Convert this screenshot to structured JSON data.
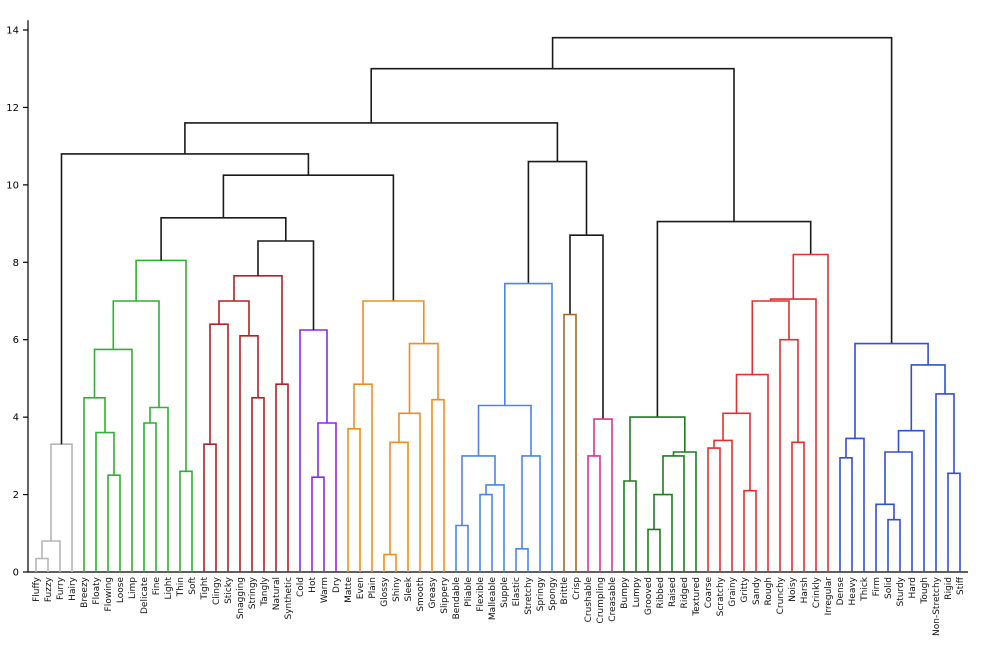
{
  "page": {
    "title": ""
  },
  "chart_data": {
    "type": "dendrogram",
    "title": "",
    "xlabel": "",
    "ylabel": "",
    "ylim": [
      0,
      14
    ],
    "yticks": [
      0,
      2,
      4,
      6,
      8,
      10,
      12,
      14
    ],
    "grid": false,
    "background": "#ffffff",
    "leaves": [
      "Fluffy",
      "Fuzzy",
      "Furry",
      "Hairy",
      "Breezy",
      "Floaty",
      "Flowing",
      "Loose",
      "Limp",
      "Delicate",
      "Fine",
      "Light",
      "Thin",
      "Soft",
      "Tight",
      "Clingy",
      "Sticky",
      "Snagging",
      "Stringy",
      "Tangly",
      "Natural",
      "Synthetic",
      "Cold",
      "Hot",
      "Warm",
      "Dry",
      "Matte",
      "Even",
      "Plain",
      "Glossy",
      "Shiny",
      "Sleek",
      "Smooth",
      "Greasy",
      "Slippery",
      "Bendable",
      "Pliable",
      "Flexible",
      "Malleable",
      "Supple",
      "Elastic",
      "Stretchy",
      "Springy",
      "Spongy",
      "Brittle",
      "Crisp",
      "Crushable",
      "Crumpling",
      "Creasable",
      "Bumpy",
      "Lumpy",
      "Grooved",
      "Ribbed",
      "Raised",
      "Ridged",
      "Textured",
      "Coarse",
      "Scratchy",
      "Grainy",
      "Gritty",
      "Sandy",
      "Rough",
      "Crunchy",
      "Noisy",
      "Harsh",
      "Crinkly",
      "Irregular",
      "Dense",
      "Heavy",
      "Thick",
      "Firm",
      "Solid",
      "Sturdy",
      "Hard",
      "Tough",
      "Non-Stretchy",
      "Rigid",
      "Stiff"
    ],
    "colors": {
      "black": "#1b1b1b",
      "gray": "#b5b5b5",
      "green": "#2db32d",
      "darkred": "#b22222",
      "purple": "#8a2be2",
      "orange": "#ef8d22",
      "lightblue": "#4a86e8",
      "brown": "#a5692a",
      "pink": "#e0338c",
      "darkgreen": "#1e7d1e",
      "red": "#e03131",
      "blue": "#3050d0"
    },
    "clusters": [
      {
        "color_key": "gray",
        "members": [
          "Fluffy",
          "Fuzzy",
          "Furry",
          "Hairy"
        ]
      },
      {
        "color_key": "green",
        "members": [
          "Breezy",
          "Floaty",
          "Flowing",
          "Loose",
          "Limp",
          "Delicate",
          "Fine",
          "Light",
          "Thin",
          "Soft"
        ]
      },
      {
        "color_key": "darkred",
        "members": [
          "Tight",
          "Clingy",
          "Sticky",
          "Snagging",
          "Stringy",
          "Tangly",
          "Natural",
          "Synthetic"
        ]
      },
      {
        "color_key": "purple",
        "members": [
          "Cold",
          "Hot",
          "Warm",
          "Dry"
        ]
      },
      {
        "color_key": "orange",
        "members": [
          "Matte",
          "Even",
          "Plain",
          "Glossy",
          "Shiny",
          "Sleek",
          "Smooth",
          "Greasy",
          "Slippery"
        ]
      },
      {
        "color_key": "lightblue",
        "members": [
          "Bendable",
          "Pliable",
          "Flexible",
          "Malleable",
          "Supple",
          "Elastic",
          "Stretchy",
          "Springy",
          "Spongy"
        ]
      },
      {
        "color_key": "brown",
        "members": [
          "Brittle",
          "Crisp"
        ]
      },
      {
        "color_key": "pink",
        "members": [
          "Crushable",
          "Crumpling",
          "Creasable"
        ]
      },
      {
        "color_key": "darkgreen",
        "members": [
          "Bumpy",
          "Lumpy",
          "Grooved",
          "Ribbed",
          "Raised",
          "Ridged",
          "Textured"
        ]
      },
      {
        "color_key": "red",
        "members": [
          "Coarse",
          "Scratchy",
          "Grainy",
          "Gritty",
          "Sandy",
          "Rough",
          "Crunchy",
          "Noisy",
          "Harsh",
          "Crinkly",
          "Irregular"
        ]
      },
      {
        "color_key": "blue",
        "members": [
          "Dense",
          "Heavy",
          "Thick",
          "Firm",
          "Solid",
          "Sturdy",
          "Hard",
          "Tough",
          "Non-Stretchy",
          "Rigid",
          "Stiff"
        ]
      }
    ],
    "linkage": [
      13.8,
      "black",
      [
        13.0,
        "black",
        [
          11.6,
          "black",
          [
            10.8,
            "black",
            [
              3.3,
              "gray",
              [
                0.8,
                "gray",
                [
                  0.35,
                  "gray",
                  0,
                  1
                ],
                2
              ],
              3
            ],
            [
              10.25,
              "black",
              [
                9.15,
                "black",
                [
                  8.05,
                  "green",
                  [
                    7.0,
                    "green",
                    [
                      5.75,
                      "green",
                      [
                        4.5,
                        "green",
                        4,
                        [
                          3.6,
                          "green",
                          5,
                          [
                            2.5,
                            "green",
                            6,
                            7
                          ]
                        ]
                      ],
                      8
                    ],
                    [
                      4.25,
                      "green",
                      [
                        3.85,
                        "green",
                        9,
                        10
                      ],
                      11
                    ]
                  ],
                  [
                    2.6,
                    "green",
                    12,
                    13
                  ]
                ],
                [
                  8.55,
                  "black",
                  [
                    7.65,
                    "darkred",
                    [
                      7.0,
                      "darkred",
                      [
                        6.4,
                        "darkred",
                        [
                          3.3,
                          "darkred",
                          14,
                          15
                        ],
                        16
                      ],
                      [
                        6.1,
                        "darkred",
                        17,
                        [
                          4.5,
                          "darkred",
                          18,
                          19
                        ]
                      ]
                    ],
                    [
                      4.85,
                      "darkred",
                      20,
                      21
                    ]
                  ],
                  [
                    6.25,
                    "purple",
                    22,
                    [
                      3.85,
                      "purple",
                      [
                        2.45,
                        "purple",
                        23,
                        24
                      ],
                      25
                    ]
                  ]
                ]
              ],
              [
                7.0,
                "orange",
                [
                  4.85,
                  "orange",
                  [
                    3.7,
                    "orange",
                    26,
                    27
                  ],
                  28
                ],
                [
                  5.9,
                  "orange",
                  [
                    4.1,
                    "orange",
                    [
                      3.35,
                      "orange",
                      [
                        0.45,
                        "orange",
                        29,
                        30
                      ],
                      31
                    ],
                    32
                  ],
                  [
                    4.45,
                    "orange",
                    33,
                    34
                  ]
                ]
              ]
            ]
          ],
          [
            10.6,
            "black",
            [
              7.45,
              "lightblue",
              [
                4.3,
                "lightblue",
                [
                  3.0,
                  "lightblue",
                  [
                    1.2,
                    "lightblue",
                    35,
                    36
                  ],
                  [
                    2.25,
                    "lightblue",
                    [
                      2.0,
                      "lightblue",
                      37,
                      38
                    ],
                    39
                  ]
                ],
                [
                  3.0,
                  "lightblue",
                  [
                    0.6,
                    "lightblue",
                    40,
                    41
                  ],
                  42
                ]
              ],
              43
            ],
            [
              8.7,
              "black",
              [
                6.65,
                "brown",
                44,
                45
              ],
              [
                3.95,
                "pink",
                [
                  3.0,
                  "pink",
                  46,
                  47
                ],
                48
              ]
            ]
          ]
        ],
        [
          9.05,
          "black",
          [
            4.0,
            "darkgreen",
            [
              2.35,
              "darkgreen",
              49,
              50
            ],
            [
              3.1,
              "darkgreen",
              [
                3.0,
                "darkgreen",
                [
                  2.0,
                  "darkgreen",
                  [
                    1.1,
                    "darkgreen",
                    51,
                    52
                  ],
                  53
                ],
                54
              ],
              55
            ]
          ],
          [
            8.2,
            "red",
            [
              7.05,
              "red",
              [
                7.0,
                "red",
                [
                  5.1,
                  "red",
                  [
                    4.1,
                    "red",
                    [
                      3.4,
                      "red",
                      [
                        3.2,
                        "red",
                        56,
                        57
                      ],
                      58
                    ],
                    [
                      2.1,
                      "red",
                      59,
                      60
                    ]
                  ],
                  61
                ],
                [
                  6.0,
                  "red",
                  62,
                  [
                    3.35,
                    "red",
                    63,
                    64
                  ]
                ]
              ],
              65
            ],
            66
          ]
        ]
      ],
      [
        5.9,
        "blue",
        [
          3.45,
          "blue",
          [
            2.95,
            "blue",
            67,
            68
          ],
          69
        ],
        [
          5.35,
          "blue",
          [
            3.65,
            "blue",
            [
              3.1,
              "blue",
              [
                1.75,
                "blue",
                70,
                [
                  1.35,
                  "blue",
                  71,
                  72
                ]
              ],
              73
            ],
            74
          ],
          [
            4.6,
            "blue",
            75,
            [
              2.55,
              "blue",
              76,
              77
            ]
          ]
        ]
      ]
    ]
  }
}
